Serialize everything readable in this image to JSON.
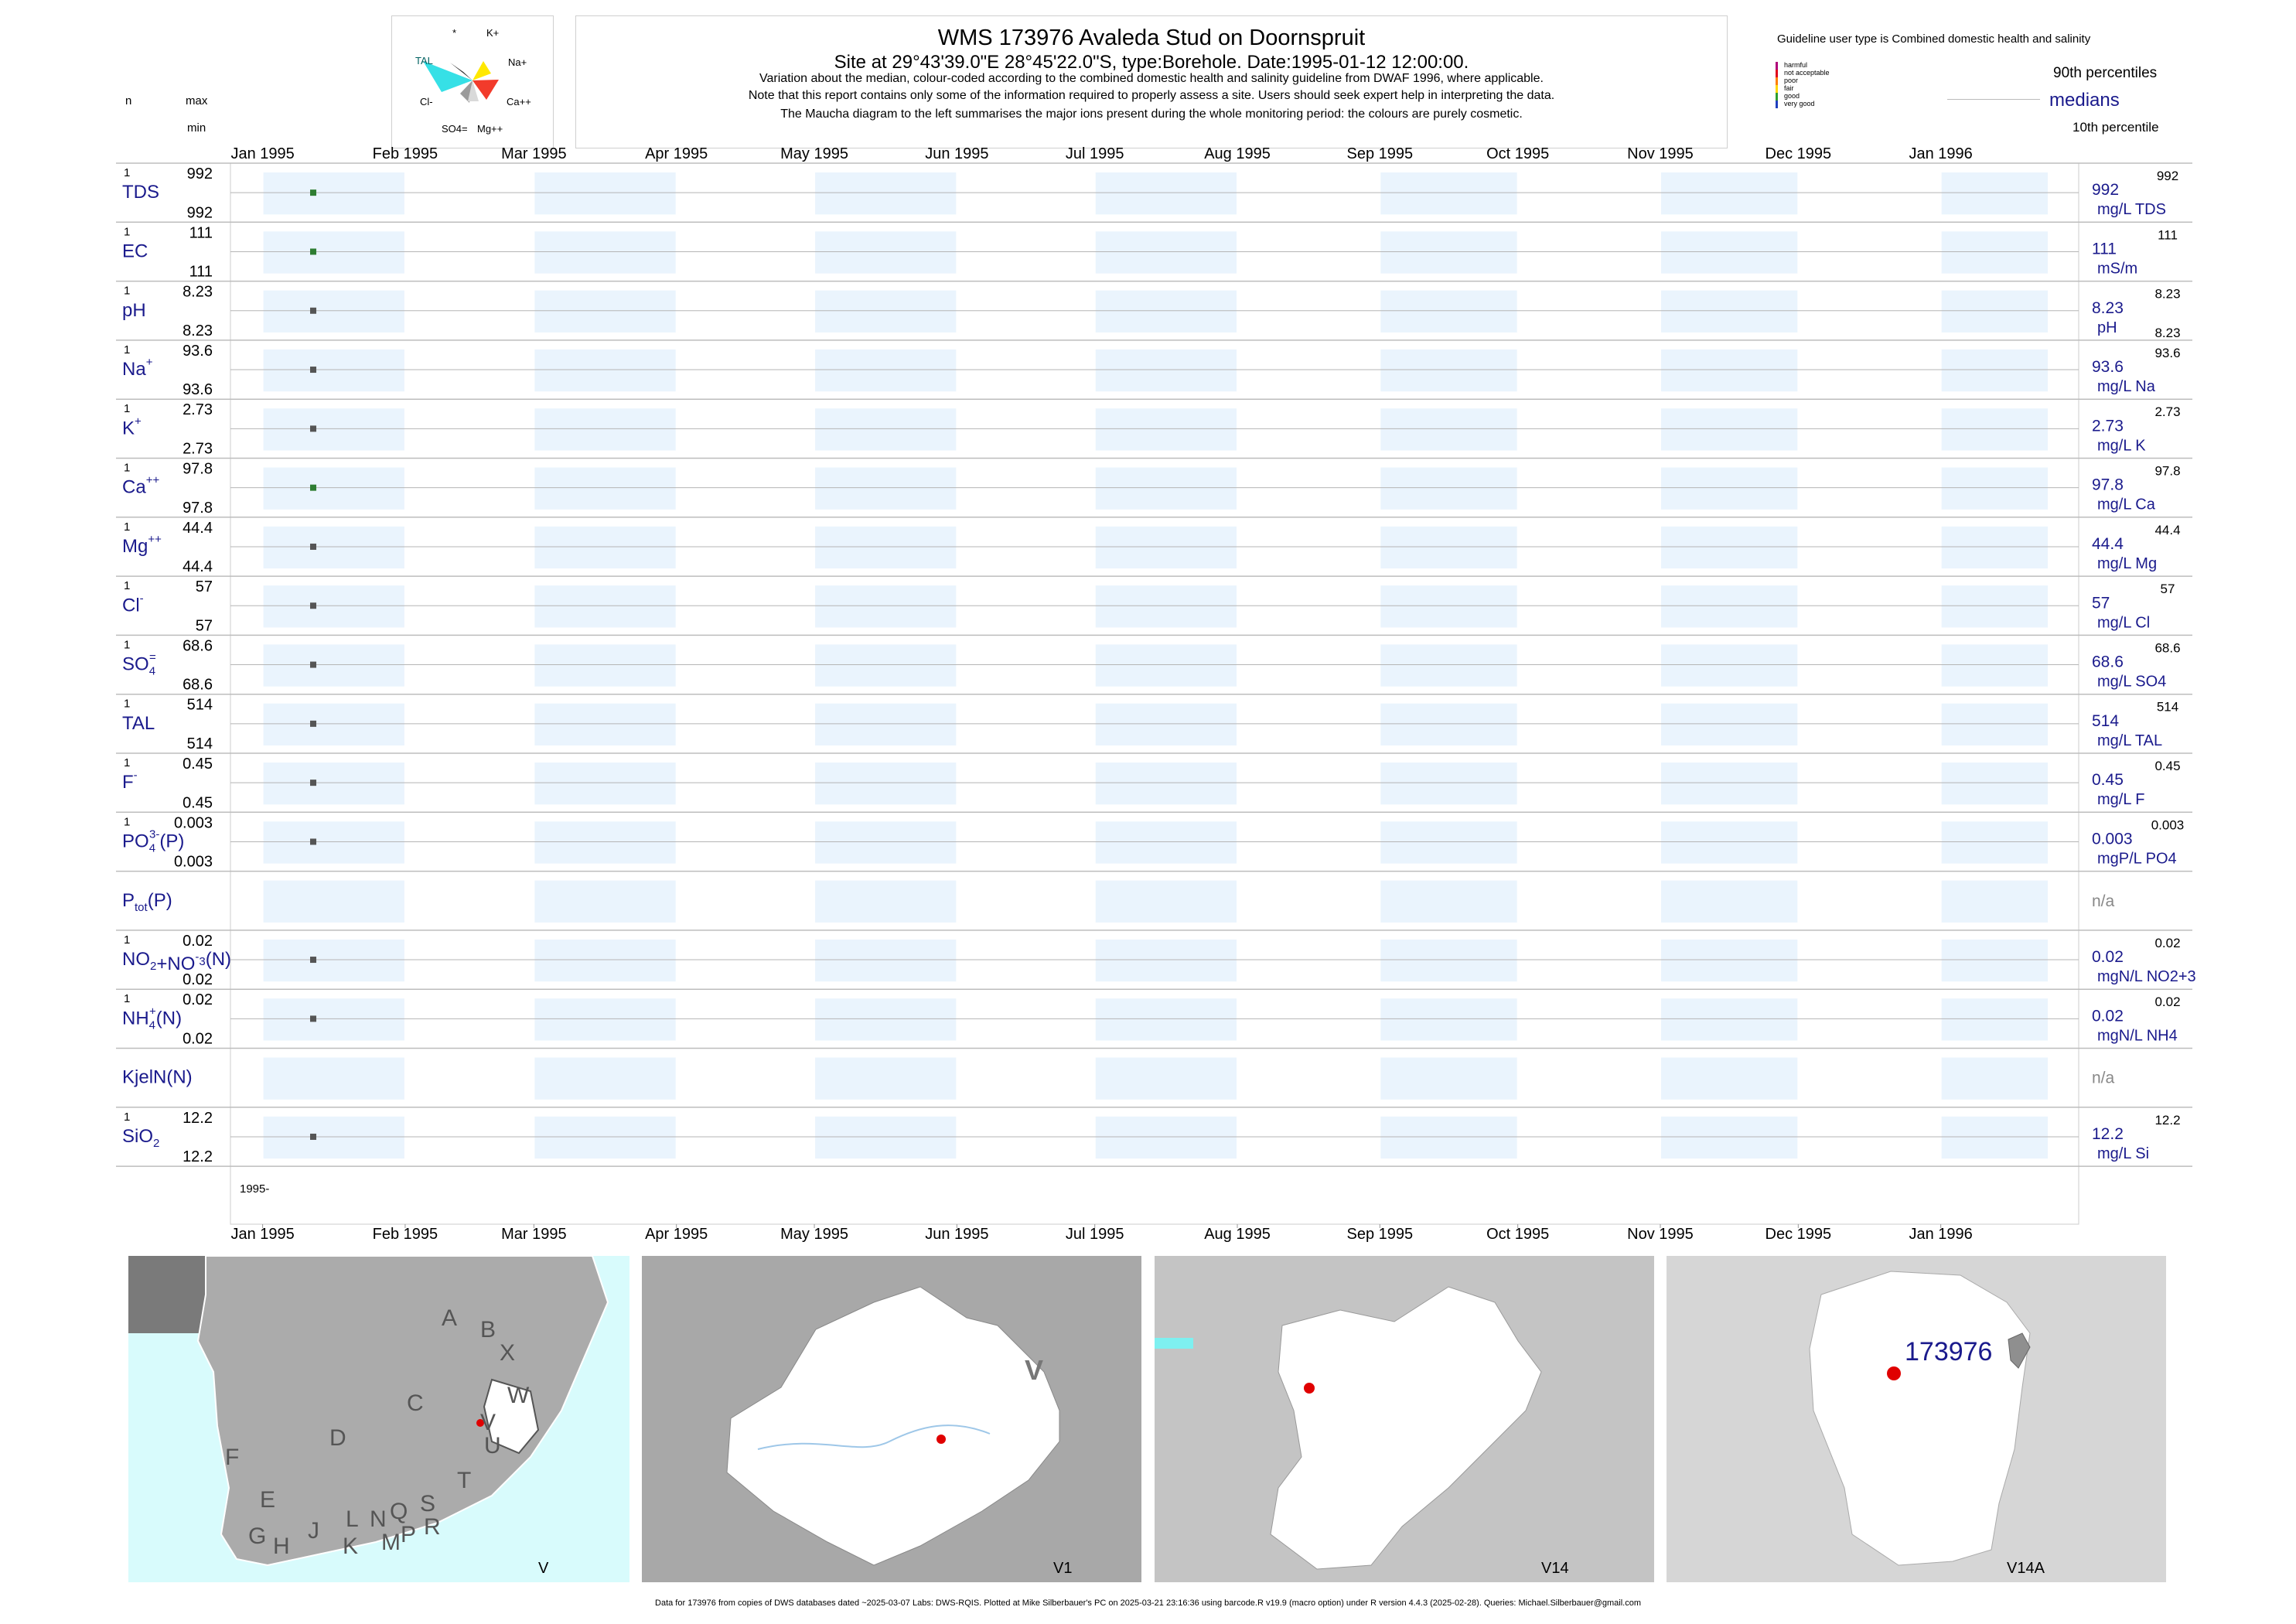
{
  "header": {
    "title": "WMS 173976  Avaleda Stud on Doornspruit",
    "subtitle": "Site at 29°43'39.0\"E 28°45'22.0\"S, type:Borehole. Date:1995-01-12 12:00:00.",
    "note1": "Variation about the median,  colour-coded according to the combined domestic health and salinity guideline from DWAF 1996, where applicable.",
    "note2": "Note that this report contains only some of the information required to properly assess a site. Users should seek expert help in interpreting the data.",
    "note3": "The Maucha diagram to the left summarises the major ions present during the whole monitoring period: the colours are purely cosmetic."
  },
  "maucha": {
    "labels": [
      "*",
      "K+",
      "TAL",
      "Na+",
      "Cl-",
      "Ca++",
      "SO4=",
      "Mg++"
    ]
  },
  "col_headers": {
    "n": "n",
    "max": "max",
    "min": "min"
  },
  "guideline": {
    "title": "Guideline user type is Combined domestic health and salinity",
    "classes": [
      {
        "label": "harmful",
        "color": "#b0007a"
      },
      {
        "label": "not acceptable",
        "color": "#e0001b"
      },
      {
        "label": "poor",
        "color": "#ff7f00"
      },
      {
        "label": "fair",
        "color": "#ffd700"
      },
      {
        "label": "good",
        "color": "#2e9e2e"
      },
      {
        "label": "very good",
        "color": "#1f3fbf"
      }
    ],
    "p90": "90th percentiles",
    "medians": "medians",
    "p10": "10th percentile"
  },
  "chart_data": {
    "type": "scatter",
    "x_ticks": [
      "Jan 1995",
      "Feb 1995",
      "Mar 1995",
      "Apr 1995",
      "May 1995",
      "Jun 1995",
      "Jul 1995",
      "Aug 1995",
      "Sep 1995",
      "Oct 1995",
      "Nov 1995",
      "Dec 1995",
      "Jan 1996"
    ],
    "sample_date": "1995-01-12",
    "year_label": "1995-",
    "series": [
      {
        "name": "TDS",
        "sup": "",
        "sub": "",
        "suffix": "",
        "n": "1",
        "max": "992",
        "min": "992",
        "median": "992",
        "p90": "992",
        "p10": "",
        "unit": "mg/L TDS",
        "value": 992,
        "color": "#2e7d32"
      },
      {
        "name": "EC",
        "sup": "",
        "sub": "",
        "suffix": "",
        "n": "1",
        "max": "111",
        "min": "111",
        "median": "111",
        "p90": "111",
        "p10": "",
        "unit": "mS/m",
        "value": 111,
        "color": "#2e7d32"
      },
      {
        "name": "pH",
        "sup": "",
        "sub": "",
        "suffix": "",
        "n": "1",
        "max": "8.23",
        "min": "8.23",
        "median": "8.23",
        "p90": "8.23",
        "p10": "8.23",
        "unit": "pH",
        "value": 8.23,
        "color": "#555555"
      },
      {
        "name": "Na",
        "sup": "+",
        "sub": "",
        "suffix": "",
        "n": "1",
        "max": "93.6",
        "min": "93.6",
        "median": "93.6",
        "p90": "93.6",
        "p10": "",
        "unit": "mg/L Na",
        "value": 93.6,
        "color": "#555555"
      },
      {
        "name": "K",
        "sup": "+",
        "sub": "",
        "suffix": "",
        "n": "1",
        "max": "2.73",
        "min": "2.73",
        "median": "2.73",
        "p90": "2.73",
        "p10": "",
        "unit": "mg/L K",
        "value": 2.73,
        "color": "#555555"
      },
      {
        "name": "Ca",
        "sup": "++",
        "sub": "",
        "suffix": "",
        "n": "1",
        "max": "97.8",
        "min": "97.8",
        "median": "97.8",
        "p90": "97.8",
        "p10": "",
        "unit": "mg/L Ca",
        "value": 97.8,
        "color": "#2e7d32"
      },
      {
        "name": "Mg",
        "sup": "++",
        "sub": "",
        "suffix": "",
        "n": "1",
        "max": "44.4",
        "min": "44.4",
        "median": "44.4",
        "p90": "44.4",
        "p10": "",
        "unit": "mg/L Mg",
        "value": 44.4,
        "color": "#555555"
      },
      {
        "name": "Cl",
        "sup": "-",
        "sub": "",
        "suffix": "",
        "n": "1",
        "max": "57",
        "min": "57",
        "median": "57",
        "p90": "57",
        "p10": "",
        "unit": "mg/L Cl",
        "value": 57,
        "color": "#555555"
      },
      {
        "name": "SO",
        "sup": "=",
        "sub": "4",
        "suffix": "",
        "n": "1",
        "max": "68.6",
        "min": "68.6",
        "median": "68.6",
        "p90": "68.6",
        "p10": "",
        "unit": "mg/L SO4",
        "value": 68.6,
        "color": "#555555"
      },
      {
        "name": "TAL",
        "sup": "",
        "sub": "",
        "suffix": "",
        "n": "1",
        "max": "514",
        "min": "514",
        "median": "514",
        "p90": "514",
        "p10": "",
        "unit": "mg/L TAL",
        "value": 514,
        "color": "#555555"
      },
      {
        "name": "F",
        "sup": "-",
        "sub": "",
        "suffix": "",
        "n": "1",
        "max": "0.45",
        "min": "0.45",
        "median": "0.45",
        "p90": "0.45",
        "p10": "",
        "unit": "mg/L F",
        "value": 0.45,
        "color": "#555555"
      },
      {
        "name": "PO",
        "sup": "3-",
        "sub": "4",
        "suffix": "(P)",
        "n": "1",
        "max": "0.003",
        "min": "0.003",
        "median": "0.003",
        "p90": "0.003",
        "p10": "",
        "unit": "mgP/L PO4",
        "value": 0.003,
        "color": "#555555"
      },
      {
        "name": "P",
        "sup": "",
        "sub": "tot",
        "suffix": "(P)",
        "n": "",
        "max": "",
        "min": "",
        "median": "n/a",
        "p90": "",
        "p10": "",
        "unit": "",
        "value": null,
        "color": "#555555"
      },
      {
        "name": "NO2+NO3(N)",
        "sup": "",
        "sub": "",
        "suffix": "",
        "n": "1",
        "max": "0.02",
        "min": "0.02",
        "median": "0.02",
        "p90": "0.02",
        "p10": "",
        "unit": "mgN/L NO2+3",
        "value": 0.02,
        "color": "#555555"
      },
      {
        "name": "NH",
        "sup": "+",
        "sub": "4",
        "suffix": "(N)",
        "n": "1",
        "max": "0.02",
        "min": "0.02",
        "median": "0.02",
        "p90": "0.02",
        "p10": "",
        "unit": "mgN/L NH4",
        "value": 0.02,
        "color": "#555555"
      },
      {
        "name": "KjelN(N)",
        "sup": "",
        "sub": "",
        "suffix": "",
        "n": "",
        "max": "",
        "min": "",
        "median": "n/a",
        "p90": "",
        "p10": "",
        "unit": "",
        "value": null,
        "color": "#555555"
      },
      {
        "name": "SiO",
        "sup": "",
        "sub": "2",
        "suffix": "",
        "n": "1",
        "max": "12.2",
        "min": "12.2",
        "median": "12.2",
        "p90": "12.2",
        "p10": "",
        "unit": "mg/L Si",
        "value": 12.2,
        "color": "#555555"
      }
    ]
  },
  "maps": [
    {
      "label": "V",
      "regions": [
        "A",
        "B",
        "X",
        "W",
        "C",
        "V",
        "D",
        "U",
        "T",
        "F",
        "E",
        "G",
        "H",
        "J",
        "K",
        "L",
        "M",
        "N",
        "P",
        "Q",
        "R",
        "S"
      ]
    },
    {
      "label": "V1",
      "regions": [
        "V"
      ]
    },
    {
      "label": "V14"
    },
    {
      "label": "V14A",
      "site": "173976"
    }
  ],
  "footer": "Data for 173976 from copies of DWS databases dated ~2025-03-07 Labs: DWS-RQIS. Plotted at Mike Silberbauer's PC on 2025-03-21 23:16:36 using barcode.R v19.9 (macro option) under R version 4.4.3 (2025-02-28). Queries: Michael.Silberbauer@gmail.com"
}
